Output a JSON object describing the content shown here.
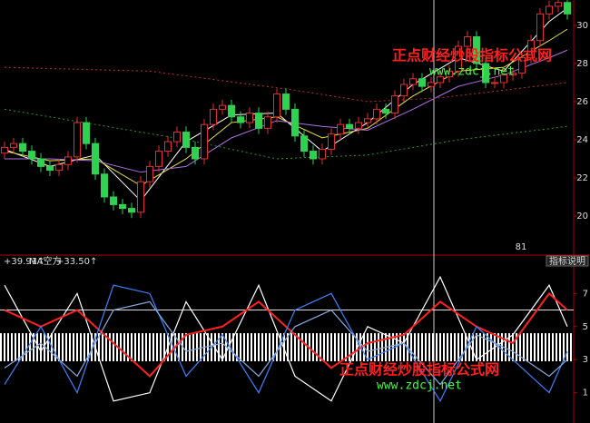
{
  "chart_data": [
    {
      "type": "candlestick",
      "ylim": [
        18,
        31.33
      ],
      "yticks": [
        20,
        22,
        24,
        26,
        28,
        30
      ],
      "up_color": "#e03030",
      "down_color": "#30d050",
      "open": [
        23.3,
        23.6,
        23.8,
        23.4,
        23.0,
        22.6,
        22.4,
        22.7,
        23.1,
        24.9,
        23.8,
        22.2,
        21.0,
        20.6,
        20.4,
        20.2,
        21.8,
        22.6,
        23.4,
        23.9,
        24.4,
        23.6,
        23.0,
        24.8,
        25.6,
        25.8,
        25.2,
        24.9,
        25.4,
        24.6,
        25.2,
        26.4,
        25.6,
        24.2,
        23.4,
        23.0,
        23.5,
        24.3,
        24.8,
        24.6,
        24.9,
        25.1,
        25.6,
        25.4,
        26.3,
        26.9,
        27.2,
        26.8,
        27.0,
        27.3,
        27.6,
        28.9,
        29.4,
        28.0,
        27.0,
        27.0,
        27.4,
        27.5,
        28.3,
        29.2,
        30.6,
        31.0,
        31.2
      ],
      "close": [
        23.6,
        23.8,
        23.4,
        23.0,
        22.6,
        22.4,
        22.7,
        23.1,
        24.9,
        23.8,
        22.2,
        21.0,
        20.6,
        20.4,
        20.2,
        21.8,
        22.6,
        23.4,
        23.9,
        24.4,
        23.6,
        23.0,
        24.8,
        25.6,
        25.8,
        25.2,
        24.9,
        25.4,
        24.6,
        25.2,
        26.4,
        25.6,
        24.2,
        23.4,
        23.0,
        23.5,
        24.3,
        24.8,
        24.6,
        24.9,
        25.1,
        25.6,
        25.4,
        26.3,
        26.9,
        27.2,
        26.8,
        27.0,
        27.3,
        27.6,
        28.9,
        29.4,
        28.0,
        27.0,
        27.0,
        27.4,
        27.5,
        28.3,
        29.2,
        30.6,
        31.0,
        31.2,
        30.6
      ],
      "high": [
        23.9,
        24.1,
        24.1,
        23.7,
        23.3,
        22.9,
        23.0,
        23.4,
        25.2,
        25.2,
        24.1,
        22.5,
        21.3,
        20.9,
        20.7,
        22.1,
        22.9,
        23.7,
        24.2,
        24.7,
        24.7,
        23.9,
        25.1,
        25.9,
        26.1,
        26.1,
        25.5,
        25.7,
        25.7,
        25.5,
        26.7,
        26.7,
        25.9,
        24.5,
        23.7,
        23.8,
        24.6,
        25.1,
        25.1,
        25.2,
        25.4,
        25.9,
        25.9,
        26.6,
        27.2,
        27.5,
        27.5,
        27.3,
        27.6,
        27.9,
        29.2,
        29.7,
        29.7,
        28.3,
        27.3,
        27.7,
        27.8,
        28.6,
        29.5,
        30.9,
        31.3,
        31.5,
        31.5
      ],
      "low": [
        23.0,
        23.3,
        23.1,
        22.7,
        22.3,
        22.1,
        22.1,
        22.4,
        22.8,
        23.5,
        21.9,
        20.7,
        20.3,
        20.1,
        19.9,
        19.9,
        21.5,
        22.3,
        23.1,
        23.6,
        23.3,
        22.7,
        22.7,
        24.5,
        25.3,
        24.9,
        24.6,
        24.6,
        24.3,
        24.3,
        24.9,
        25.3,
        23.9,
        23.1,
        22.7,
        22.7,
        23.2,
        24.0,
        24.3,
        24.3,
        24.6,
        24.8,
        25.1,
        25.1,
        26.0,
        26.6,
        26.5,
        26.5,
        26.7,
        27.0,
        27.3,
        28.6,
        27.7,
        26.7,
        26.7,
        26.7,
        27.1,
        27.2,
        28.0,
        28.9,
        30.3,
        30.7,
        30.3
      ],
      "lines": [
        {
          "color": "#ffffff",
          "dashed": false,
          "x": [
            0,
            5,
            10,
            15,
            20,
            25,
            30,
            35,
            40,
            45,
            50,
            55,
            60,
            62
          ],
          "values": [
            23.5,
            22.6,
            23.2,
            20.8,
            23.9,
            25.3,
            25.4,
            23.4,
            24.9,
            26.9,
            28.3,
            27.6,
            30.2,
            30.9
          ]
        },
        {
          "color": "#e8e040",
          "dashed": false,
          "x": [
            0,
            5,
            10,
            15,
            20,
            25,
            30,
            35,
            40,
            45,
            50,
            55,
            60,
            62
          ],
          "values": [
            23.4,
            22.9,
            23.0,
            21.6,
            23.0,
            24.9,
            25.2,
            24.1,
            24.6,
            26.3,
            27.6,
            27.8,
            29.2,
            29.8
          ]
        },
        {
          "color": "#b070e0",
          "dashed": false,
          "x": [
            0,
            5,
            10,
            15,
            20,
            25,
            30,
            35,
            40,
            45,
            50,
            55,
            60,
            62
          ],
          "values": [
            23.0,
            23.0,
            22.9,
            22.3,
            22.6,
            24.1,
            25.0,
            24.7,
            24.5,
            25.6,
            26.8,
            27.4,
            28.3,
            28.7
          ]
        },
        {
          "color": "#c03030",
          "dashed": true,
          "x": [
            0,
            16,
            32,
            40,
            48,
            62
          ],
          "values": [
            27.8,
            27.6,
            26.6,
            26.0,
            26.2,
            27.0
          ]
        },
        {
          "color": "#2a9a2a",
          "dashed": true,
          "x": [
            0,
            20,
            30,
            40,
            50,
            62
          ],
          "values": [
            25.6,
            24.0,
            23.0,
            23.2,
            24.0,
            24.7
          ]
        }
      ],
      "annotation": "81"
    },
    {
      "type": "line",
      "ylim": [
        -0.5,
        8.5
      ],
      "yticks": [
        1,
        3,
        5,
        7
      ],
      "header": [
        "+39.91↑",
        "MA空方",
        "+33.50↑"
      ],
      "ref_level": 6,
      "band": {
        "lower": 2.9,
        "upper": 4.6,
        "color": "#ffffff"
      },
      "x": [
        0,
        4,
        8,
        12,
        16,
        20,
        24,
        28,
        32,
        36,
        40,
        44,
        48,
        52,
        56,
        60,
        62
      ],
      "series": [
        {
          "color": "#ffffff",
          "values": [
            7.5,
            3.5,
            7.0,
            0.5,
            1.0,
            6.5,
            3.0,
            7.5,
            2.0,
            0.5,
            5.0,
            4.0,
            8.0,
            3.0,
            4.5,
            7.5,
            5.0
          ]
        },
        {
          "color": "#ff2020",
          "values": [
            6.0,
            5.0,
            6.0,
            4.0,
            2.0,
            4.5,
            5.0,
            6.5,
            4.5,
            2.5,
            4.0,
            4.5,
            6.5,
            5.0,
            4.0,
            7.0,
            6.0
          ]
        },
        {
          "color": "#4080ff",
          "values": [
            1.5,
            5.0,
            1.0,
            7.5,
            7.0,
            2.0,
            4.5,
            1.0,
            6.0,
            7.0,
            3.0,
            4.0,
            0.5,
            5.0,
            3.0,
            1.0,
            3.5
          ]
        },
        {
          "color": "#88aadd",
          "values": [
            2.5,
            4.0,
            2.0,
            6.0,
            6.5,
            3.5,
            4.0,
            2.0,
            5.0,
            6.0,
            3.5,
            4.0,
            1.5,
            4.5,
            3.5,
            2.0,
            3.0
          ]
        }
      ]
    }
  ],
  "watermarks": [
    {
      "title": "正点财经炒股指标公式网",
      "url": "www.zdcj.net"
    },
    {
      "title": "正点财经炒股指标公式网",
      "url": "www.zdcj.net"
    }
  ],
  "button": "指标说明"
}
